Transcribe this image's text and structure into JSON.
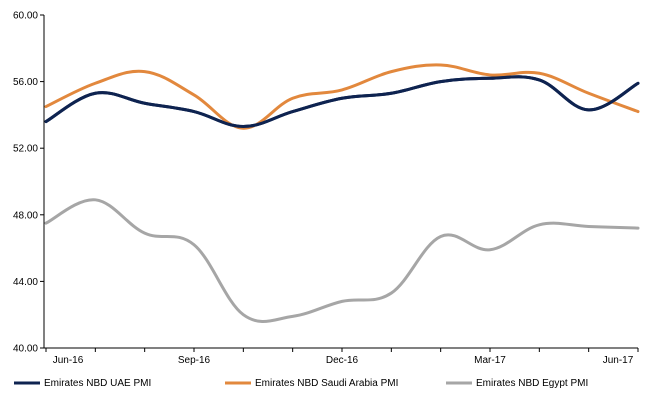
{
  "chart_data": {
    "type": "line",
    "title": "",
    "xlabel": "",
    "ylabel": "",
    "ylim": [
      40,
      60
    ],
    "yticks": [
      "40.00",
      "44.00",
      "48.00",
      "52.00",
      "56.00",
      "60.00"
    ],
    "x_tick_labels": [
      "Jun-16",
      "Sep-16",
      "Dec-16",
      "Mar-17",
      "Jun-17"
    ],
    "x": [
      "Jun-16",
      "Jul-16",
      "Aug-16",
      "Sep-16",
      "Oct-16",
      "Nov-16",
      "Dec-16",
      "Jan-17",
      "Feb-17",
      "Mar-17",
      "Apr-17",
      "May-17",
      "Jun-17"
    ],
    "grid": false,
    "legend_position": "bottom",
    "series": [
      {
        "name": "Emirates NBD UAE PMI",
        "color": "#0e2350",
        "values": [
          53.6,
          55.3,
          54.7,
          54.2,
          53.3,
          54.2,
          55.0,
          55.3,
          56.0,
          56.2,
          56.1,
          54.3,
          55.9
        ]
      },
      {
        "name": "Emirates NBD Saudi Arabia PMI",
        "color": "#e2883d",
        "values": [
          54.5,
          55.9,
          56.6,
          55.2,
          53.2,
          55.0,
          55.5,
          56.6,
          57.0,
          56.4,
          56.5,
          55.3,
          54.2
        ]
      },
      {
        "name": "Emirates NBD Egypt PMI",
        "color": "#a6a6a6",
        "values": [
          47.5,
          48.9,
          46.9,
          46.2,
          42.0,
          41.9,
          42.8,
          43.3,
          46.7,
          45.9,
          47.4,
          47.3,
          47.2
        ]
      }
    ]
  }
}
